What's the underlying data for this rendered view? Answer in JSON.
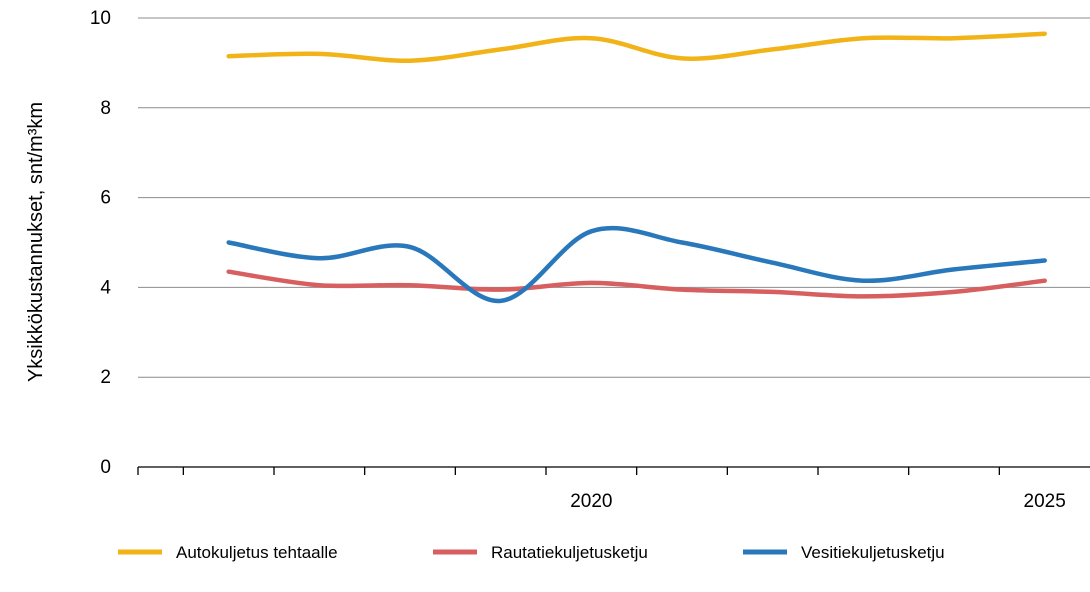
{
  "chart_data": {
    "type": "line",
    "ylabel": "Yksikkökustannukset, snt/m³km",
    "ylim": [
      0,
      10
    ],
    "y_ticks": [
      "0",
      "2",
      "4",
      "6",
      "8",
      "10"
    ],
    "x_ticks": [
      "2020",
      "2025"
    ],
    "x_positions": [
      2016,
      2017,
      2018,
      2019,
      2020,
      2021,
      2022,
      2023,
      2024,
      2025
    ],
    "grid": "horizontal",
    "legend_position": "bottom",
    "series": [
      {
        "name": "Autokuljetus tehtaalle",
        "color": "#F2B318",
        "values": [
          9.15,
          9.2,
          9.05,
          9.3,
          9.55,
          9.1,
          9.3,
          9.55,
          9.55,
          9.65
        ]
      },
      {
        "name": "Rautatiekuljetusketju",
        "color": "#D75F5F",
        "values": [
          4.35,
          4.05,
          4.05,
          3.95,
          4.1,
          3.95,
          3.9,
          3.8,
          3.9,
          4.15
        ]
      },
      {
        "name": "Vesitiekuljetusketju",
        "color": "#2978BB",
        "values": [
          5.0,
          4.65,
          4.9,
          3.7,
          5.25,
          5.0,
          4.55,
          4.15,
          4.4,
          4.6
        ]
      }
    ]
  }
}
